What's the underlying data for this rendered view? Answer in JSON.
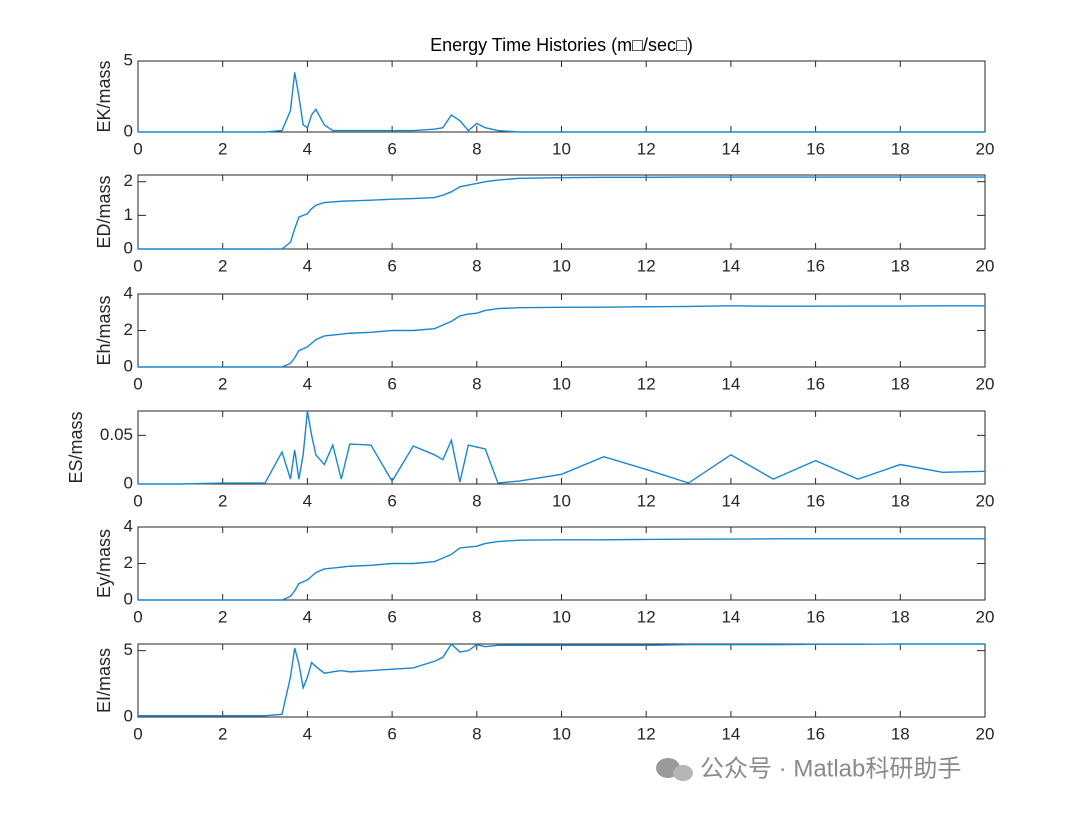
{
  "chart_data": [
    {
      "type": "line",
      "title": "Energy Time Histories (m□/sec□)",
      "ylabel": "EK/mass",
      "color": "#1a86d0",
      "x": [
        0,
        1,
        2,
        3,
        3.4,
        3.6,
        3.7,
        3.8,
        3.9,
        4,
        4.1,
        4.2,
        4.4,
        4.6,
        4.8,
        5,
        5.5,
        6,
        6.5,
        7,
        7.2,
        7.4,
        7.6,
        7.8,
        8,
        8.2,
        8.5,
        9,
        10,
        11,
        12,
        13,
        14,
        15,
        16,
        17,
        18,
        19,
        20
      ],
      "values": [
        0,
        0,
        0,
        0,
        0.1,
        1.5,
        4.2,
        2.5,
        0.5,
        0.3,
        1.2,
        1.6,
        0.5,
        0.1,
        0.1,
        0.1,
        0.1,
        0.1,
        0.1,
        0.2,
        0.3,
        1.2,
        0.8,
        0.1,
        0.6,
        0.3,
        0.1,
        0,
        0,
        0,
        0,
        0,
        0,
        0,
        0,
        0,
        0,
        0,
        0
      ],
      "xlim": [
        0,
        20
      ],
      "xticks": [
        0,
        2,
        4,
        6,
        8,
        10,
        12,
        14,
        16,
        18,
        20
      ],
      "ylim": [
        0,
        5
      ],
      "yticks": [
        0,
        5
      ]
    },
    {
      "type": "line",
      "ylabel": "ED/mass",
      "color": "#1a86d0",
      "x": [
        0,
        1,
        2,
        3,
        3.4,
        3.6,
        3.7,
        3.8,
        3.9,
        4,
        4.1,
        4.2,
        4.4,
        4.6,
        4.8,
        5,
        5.5,
        6,
        6.5,
        7,
        7.2,
        7.4,
        7.6,
        7.8,
        8,
        8.2,
        8.5,
        9,
        10,
        11,
        12,
        13,
        14,
        15,
        16,
        17,
        18,
        19,
        20
      ],
      "values": [
        0,
        0,
        0,
        0,
        0,
        0.2,
        0.6,
        0.95,
        1.0,
        1.05,
        1.2,
        1.3,
        1.38,
        1.4,
        1.42,
        1.43,
        1.45,
        1.48,
        1.5,
        1.53,
        1.6,
        1.7,
        1.85,
        1.9,
        1.95,
        2.0,
        2.05,
        2.1,
        2.12,
        2.13,
        2.13,
        2.14,
        2.14,
        2.14,
        2.14,
        2.14,
        2.14,
        2.14,
        2.14
      ],
      "xlim": [
        0,
        20
      ],
      "xticks": [
        0,
        2,
        4,
        6,
        8,
        10,
        12,
        14,
        16,
        18,
        20
      ],
      "ylim": [
        0,
        2.2
      ],
      "yticks": [
        0,
        1,
        2
      ]
    },
    {
      "type": "line",
      "ylabel": "Eh/mass",
      "color": "#1a86d0",
      "x": [
        0,
        1,
        2,
        3,
        3.4,
        3.6,
        3.7,
        3.8,
        3.9,
        4,
        4.1,
        4.2,
        4.4,
        4.6,
        4.8,
        5,
        5.5,
        6,
        6.5,
        7,
        7.2,
        7.4,
        7.6,
        7.8,
        8,
        8.2,
        8.5,
        9,
        10,
        11,
        12,
        13,
        14,
        15,
        16,
        17,
        18,
        19,
        20
      ],
      "values": [
        0,
        0,
        0,
        0,
        0,
        0.2,
        0.5,
        0.9,
        1.0,
        1.1,
        1.3,
        1.5,
        1.7,
        1.75,
        1.8,
        1.85,
        1.9,
        2.0,
        2.0,
        2.1,
        2.3,
        2.5,
        2.8,
        2.9,
        2.95,
        3.1,
        3.2,
        3.25,
        3.27,
        3.28,
        3.3,
        3.32,
        3.35,
        3.33,
        3.33,
        3.34,
        3.34,
        3.35,
        3.35
      ],
      "xlim": [
        0,
        20
      ],
      "xticks": [
        0,
        2,
        4,
        6,
        8,
        10,
        12,
        14,
        16,
        18,
        20
      ],
      "ylim": [
        0,
        4
      ],
      "yticks": [
        0,
        2,
        4
      ]
    },
    {
      "type": "line",
      "ylabel": "ES/mass",
      "color": "#1a86d0",
      "x": [
        0,
        1,
        2,
        3,
        3.4,
        3.6,
        3.7,
        3.8,
        3.9,
        4,
        4.1,
        4.2,
        4.4,
        4.6,
        4.8,
        5,
        5.5,
        6,
        6.5,
        7,
        7.2,
        7.4,
        7.6,
        7.8,
        8,
        8.2,
        8.5,
        9,
        10,
        11,
        12,
        13,
        14,
        15,
        16,
        17,
        18,
        19,
        20
      ],
      "values": [
        0,
        0,
        0.001,
        0.001,
        0.033,
        0.005,
        0.035,
        0.005,
        0.03,
        0.075,
        0.05,
        0.03,
        0.02,
        0.04,
        0.005,
        0.041,
        0.04,
        0.003,
        0.039,
        0.03,
        0.025,
        0.045,
        0.002,
        0.04,
        0.038,
        0.036,
        0.001,
        0.003,
        0.01,
        0.028,
        0.015,
        0.001,
        0.03,
        0.005,
        0.024,
        0.005,
        0.02,
        0.012,
        0.013
      ],
      "xlim": [
        0,
        20
      ],
      "xticks": [
        0,
        2,
        4,
        6,
        8,
        10,
        12,
        14,
        16,
        18,
        20
      ],
      "ylim": [
        0,
        0.075
      ],
      "yticks": [
        0,
        0.05
      ]
    },
    {
      "type": "line",
      "ylabel": "Ey/mass",
      "color": "#1a86d0",
      "x": [
        0,
        1,
        2,
        3,
        3.4,
        3.6,
        3.7,
        3.8,
        3.9,
        4,
        4.1,
        4.2,
        4.4,
        4.6,
        4.8,
        5,
        5.5,
        6,
        6.5,
        7,
        7.2,
        7.4,
        7.6,
        7.8,
        8,
        8.2,
        8.5,
        9,
        10,
        11,
        12,
        13,
        14,
        15,
        16,
        17,
        18,
        19,
        20
      ],
      "values": [
        0,
        0,
        0,
        0,
        0,
        0.2,
        0.5,
        0.9,
        1.0,
        1.1,
        1.3,
        1.5,
        1.7,
        1.75,
        1.8,
        1.85,
        1.9,
        2.0,
        2.0,
        2.1,
        2.3,
        2.5,
        2.85,
        2.9,
        2.95,
        3.1,
        3.2,
        3.28,
        3.3,
        3.3,
        3.32,
        3.33,
        3.34,
        3.35,
        3.35,
        3.35,
        3.35,
        3.35,
        3.35
      ],
      "xlim": [
        0,
        20
      ],
      "xticks": [
        0,
        2,
        4,
        6,
        8,
        10,
        12,
        14,
        16,
        18,
        20
      ],
      "ylim": [
        0,
        4
      ],
      "yticks": [
        0,
        2,
        4
      ]
    },
    {
      "type": "line",
      "ylabel": "EI/mass",
      "color": "#1a86d0",
      "x": [
        0,
        1,
        2,
        3,
        3.4,
        3.6,
        3.7,
        3.8,
        3.9,
        4,
        4.1,
        4.2,
        4.4,
        4.6,
        4.8,
        5,
        5.5,
        6,
        6.5,
        7,
        7.2,
        7.4,
        7.6,
        7.8,
        8,
        8.2,
        8.5,
        9,
        10,
        11,
        12,
        13,
        14,
        15,
        16,
        17,
        18,
        19,
        20
      ],
      "values": [
        0.1,
        0.1,
        0.1,
        0.1,
        0.2,
        3,
        5.2,
        4,
        2.2,
        3,
        4.1,
        3.8,
        3.3,
        3.4,
        3.5,
        3.4,
        3.5,
        3.6,
        3.7,
        4.2,
        4.5,
        5.5,
        4.9,
        5.0,
        5.45,
        5.3,
        5.4,
        5.4,
        5.4,
        5.4,
        5.4,
        5.45,
        5.45,
        5.45,
        5.48,
        5.48,
        5.5,
        5.5,
        5.5
      ],
      "xlim": [
        0,
        20
      ],
      "xticks": [
        0,
        2,
        4,
        6,
        8,
        10,
        12,
        14,
        16,
        18,
        20
      ],
      "ylim": [
        0,
        5.5
      ],
      "yticks": [
        0,
        5
      ]
    }
  ],
  "watermark": "公众号 · Matlab科研助手"
}
